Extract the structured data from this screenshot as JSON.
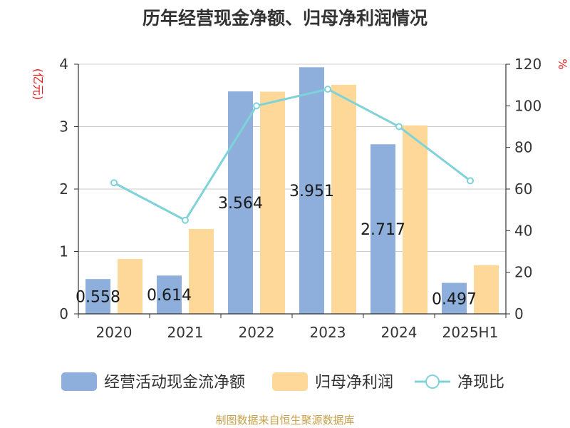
{
  "title": "历年经营现金净额、归母净利润情况",
  "footer": "制图数据来自恒生聚源数据库",
  "chart_data": {
    "type": "bar",
    "categories": [
      "2020",
      "2021",
      "2022",
      "2023",
      "2024",
      "2025H1"
    ],
    "series": [
      {
        "name": "经营活动现金流净额",
        "type": "bar",
        "axis": "left",
        "color": "#8eafdc",
        "values": [
          0.558,
          0.614,
          3.564,
          3.951,
          2.717,
          0.497
        ],
        "labels": [
          "0.558",
          "0.614",
          "3.564",
          "3.951",
          "2.717",
          "0.497"
        ]
      },
      {
        "name": "归母净利润",
        "type": "bar",
        "axis": "left",
        "color": "#fdd898",
        "values": [
          0.88,
          1.36,
          3.56,
          3.67,
          3.02,
          0.78
        ]
      },
      {
        "name": "净现比",
        "type": "line",
        "axis": "right",
        "color": "#7fd3d8",
        "values": [
          63,
          45,
          100,
          108,
          90,
          64
        ]
      }
    ],
    "y_left": {
      "label": "(亿元)",
      "ylim": [
        0,
        4
      ],
      "ticks": [
        0,
        1,
        2,
        3,
        4
      ]
    },
    "y_right": {
      "label": "%",
      "ylim": [
        0,
        120
      ],
      "ticks": [
        0,
        20,
        40,
        60,
        80,
        100,
        120
      ]
    },
    "grid": true,
    "legend": "bottom"
  }
}
